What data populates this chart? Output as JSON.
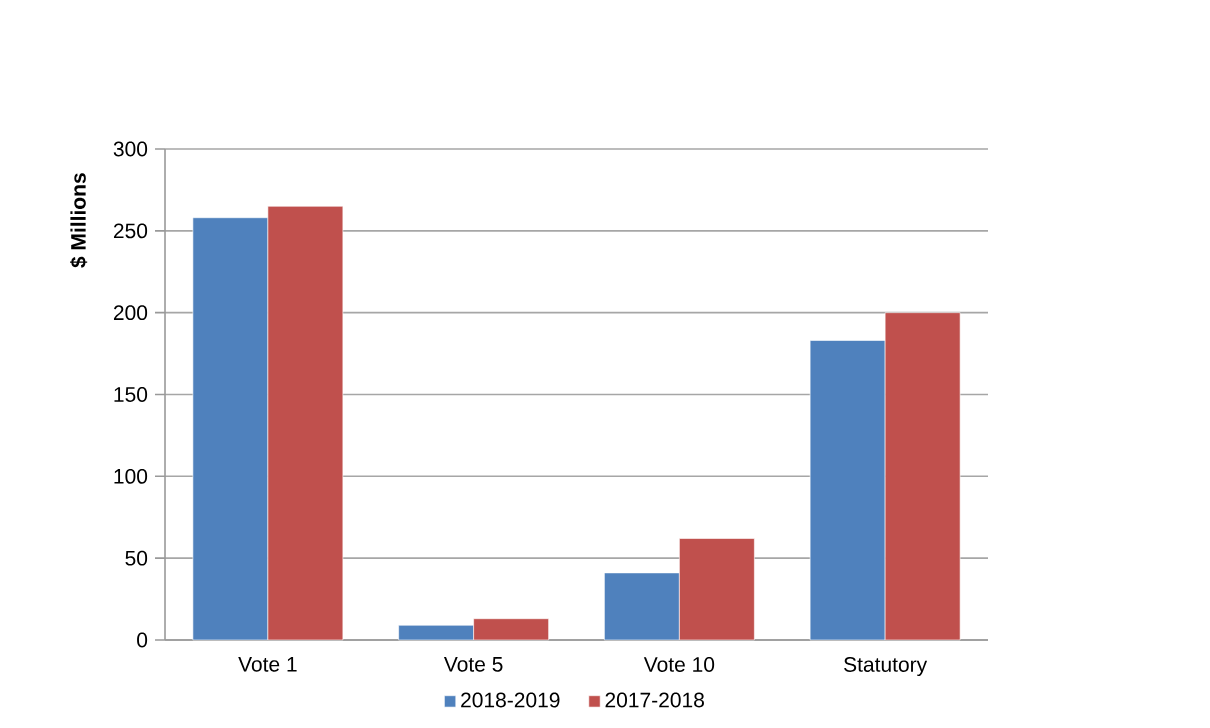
{
  "chart_data": {
    "type": "bar",
    "ylabel": "**$ Millions**",
    "categories": [
      "Vote 1",
      "Vote 5",
      "Vote 10",
      "Statutory"
    ],
    "series": [
      {
        "name": "2018-2019",
        "color": "#4f81bd",
        "values": [
          258,
          9,
          41,
          183
        ]
      },
      {
        "name": "2017-2018",
        "color": "#c0504d",
        "values": [
          265,
          13,
          62,
          200
        ]
      }
    ],
    "ylim": [
      0,
      300
    ],
    "yticks": [
      0,
      50,
      100,
      150,
      200,
      250,
      300
    ],
    "grid": "y",
    "legend": "bottom"
  }
}
